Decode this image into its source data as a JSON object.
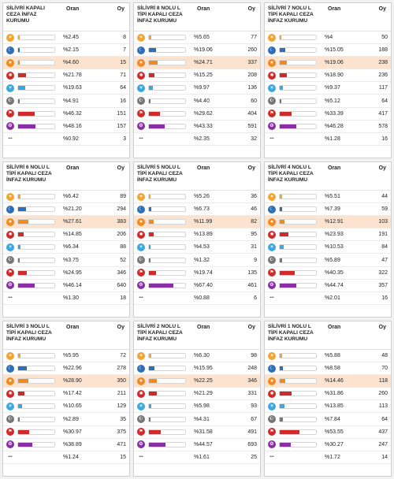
{
  "header": {
    "oran_label": "Oran",
    "oy_label": "Oy"
  },
  "parties": [
    {
      "icon": "bulb-icon",
      "color": "#f3a533"
    },
    {
      "icon": "crescent-stars-icon",
      "color": "#2c6fb8"
    },
    {
      "icon": "star-badge-icon",
      "color": "#f28a1f"
    },
    {
      "icon": "six-arrows-icon",
      "color": "#cf2a2a"
    },
    {
      "icon": "sun-icon",
      "color": "#39a8e0"
    },
    {
      "icon": "crescent-star-icon",
      "color": "#777777"
    },
    {
      "icon": "flag-icon",
      "color": "#d02a2a"
    },
    {
      "icon": "emblem-icon",
      "color": "#8a2ea6"
    },
    {
      "icon": "dots-icon",
      "color": "#444444"
    }
  ],
  "chart_data": [
    {
      "type": "table",
      "title": "SİLİVRİ KAPALI CEZA İNFAZ KURUMU",
      "highlight_row": 2,
      "rows": [
        {
          "pct": "%2.45",
          "votes": "8",
          "value": 2.45
        },
        {
          "pct": "%2.15",
          "votes": "7",
          "value": 2.15
        },
        {
          "pct": "%4.60",
          "votes": "15",
          "value": 4.6
        },
        {
          "pct": "%21.78",
          "votes": "71",
          "value": 21.78
        },
        {
          "pct": "%19.63",
          "votes": "64",
          "value": 19.63
        },
        {
          "pct": "%4.91",
          "votes": "16",
          "value": 4.91
        },
        {
          "pct": "%46.32",
          "votes": "151",
          "value": 46.32
        },
        {
          "pct": "%48.16",
          "votes": "157",
          "value": 48.16
        },
        {
          "pct": "%0.92",
          "votes": "3",
          "value": 0.92
        }
      ]
    },
    {
      "type": "table",
      "title": "SİLİVRİ 8 NOLU L TİPİ KAPALI CEZA İNFAZ KURUMU",
      "highlight_row": 2,
      "rows": [
        {
          "pct": "%5.65",
          "votes": "77",
          "value": 5.65
        },
        {
          "pct": "%19.06",
          "votes": "260",
          "value": 19.06
        },
        {
          "pct": "%24.71",
          "votes": "337",
          "value": 24.71
        },
        {
          "pct": "%15.25",
          "votes": "208",
          "value": 15.25
        },
        {
          "pct": "%9.97",
          "votes": "136",
          "value": 9.97
        },
        {
          "pct": "%4.40",
          "votes": "60",
          "value": 4.4
        },
        {
          "pct": "%29.62",
          "votes": "404",
          "value": 29.62
        },
        {
          "pct": "%43.33",
          "votes": "591",
          "value": 43.33
        },
        {
          "pct": "%2.35",
          "votes": "32",
          "value": 2.35
        }
      ]
    },
    {
      "type": "table",
      "title": "SİLİVRİ 7 NOLU L TİPİ KAPALI CEZA İNFAZ KURUMU",
      "highlight_row": 2,
      "rows": [
        {
          "pct": "%4",
          "votes": "50",
          "value": 4
        },
        {
          "pct": "%15.05",
          "votes": "188",
          "value": 15.05
        },
        {
          "pct": "%19.06",
          "votes": "238",
          "value": 19.06
        },
        {
          "pct": "%18.90",
          "votes": "236",
          "value": 18.9
        },
        {
          "pct": "%9.37",
          "votes": "117",
          "value": 9.37
        },
        {
          "pct": "%5.12",
          "votes": "64",
          "value": 5.12
        },
        {
          "pct": "%33.39",
          "votes": "417",
          "value": 33.39
        },
        {
          "pct": "%46.28",
          "votes": "578",
          "value": 46.28
        },
        {
          "pct": "%1.28",
          "votes": "16",
          "value": 1.28
        }
      ]
    },
    {
      "type": "table",
      "title": "SİLİVRİ 6 NOLU L TİPİ KAPALI CEZA İNFAZ KURUMU",
      "highlight_row": 2,
      "rows": [
        {
          "pct": "%6.42",
          "votes": "89",
          "value": 6.42
        },
        {
          "pct": "%21.20",
          "votes": "294",
          "value": 21.2
        },
        {
          "pct": "%27.61",
          "votes": "383",
          "value": 27.61
        },
        {
          "pct": "%14.85",
          "votes": "206",
          "value": 14.85
        },
        {
          "pct": "%6.34",
          "votes": "88",
          "value": 6.34
        },
        {
          "pct": "%3.75",
          "votes": "52",
          "value": 3.75
        },
        {
          "pct": "%24.95",
          "votes": "346",
          "value": 24.95
        },
        {
          "pct": "%46.14",
          "votes": "640",
          "value": 46.14
        },
        {
          "pct": "%1.30",
          "votes": "18",
          "value": 1.3
        }
      ]
    },
    {
      "type": "table",
      "title": "SİLİVRİ 5 NOLU L TİPİ KAPALI CEZA İNFAZ KURUMU",
      "highlight_row": 2,
      "rows": [
        {
          "pct": "%5.26",
          "votes": "36",
          "value": 5.26
        },
        {
          "pct": "%6.73",
          "votes": "46",
          "value": 6.73
        },
        {
          "pct": "%11.99",
          "votes": "82",
          "value": 11.99
        },
        {
          "pct": "%13.89",
          "votes": "95",
          "value": 13.89
        },
        {
          "pct": "%4.53",
          "votes": "31",
          "value": 4.53
        },
        {
          "pct": "%1.32",
          "votes": "9",
          "value": 1.32
        },
        {
          "pct": "%19.74",
          "votes": "135",
          "value": 19.74
        },
        {
          "pct": "%67.40",
          "votes": "461",
          "value": 67.4
        },
        {
          "pct": "%0.88",
          "votes": "6",
          "value": 0.88
        }
      ]
    },
    {
      "type": "table",
      "title": "SİLİVRİ 4 NOLU L TİPİ KAPALI CEZA İNFAZ KURUMU",
      "highlight_row": 2,
      "rows": [
        {
          "pct": "%5.51",
          "votes": "44",
          "value": 5.51
        },
        {
          "pct": "%7.39",
          "votes": "59",
          "value": 7.39
        },
        {
          "pct": "%12.91",
          "votes": "103",
          "value": 12.91
        },
        {
          "pct": "%23.93",
          "votes": "191",
          "value": 23.93
        },
        {
          "pct": "%10.53",
          "votes": "84",
          "value": 10.53
        },
        {
          "pct": "%5.89",
          "votes": "47",
          "value": 5.89
        },
        {
          "pct": "%40.35",
          "votes": "322",
          "value": 40.35
        },
        {
          "pct": "%44.74",
          "votes": "357",
          "value": 44.74
        },
        {
          "pct": "%2.01",
          "votes": "16",
          "value": 2.01
        }
      ]
    },
    {
      "type": "table",
      "title": "SİLİVRİ 3 NOLU L TİPİ KAPALI CEZA İNFAZ KURUMU",
      "highlight_row": 2,
      "rows": [
        {
          "pct": "%5.95",
          "votes": "72",
          "value": 5.95
        },
        {
          "pct": "%22.96",
          "votes": "278",
          "value": 22.96
        },
        {
          "pct": "%28.90",
          "votes": "350",
          "value": 28.9
        },
        {
          "pct": "%17.42",
          "votes": "211",
          "value": 17.42
        },
        {
          "pct": "%10.65",
          "votes": "129",
          "value": 10.65
        },
        {
          "pct": "%2.89",
          "votes": "35",
          "value": 2.89
        },
        {
          "pct": "%30.97",
          "votes": "375",
          "value": 30.97
        },
        {
          "pct": "%38.89",
          "votes": "471",
          "value": 38.89
        },
        {
          "pct": "%1.24",
          "votes": "15",
          "value": 1.24
        }
      ]
    },
    {
      "type": "table",
      "title": "SİLİVRİ 2 NOLU L TİPİ KAPALI CEZA İNFAZ KURUMU",
      "highlight_row": 2,
      "rows": [
        {
          "pct": "%6.30",
          "votes": "98",
          "value": 6.3
        },
        {
          "pct": "%15.95",
          "votes": "248",
          "value": 15.95
        },
        {
          "pct": "%22.25",
          "votes": "346",
          "value": 22.25
        },
        {
          "pct": "%21.29",
          "votes": "331",
          "value": 21.29
        },
        {
          "pct": "%5.98",
          "votes": "93",
          "value": 5.98
        },
        {
          "pct": "%4.31",
          "votes": "67",
          "value": 4.31
        },
        {
          "pct": "%31.58",
          "votes": "491",
          "value": 31.58
        },
        {
          "pct": "%44.57",
          "votes": "693",
          "value": 44.57
        },
        {
          "pct": "%1.61",
          "votes": "25",
          "value": 1.61
        }
      ]
    },
    {
      "type": "table",
      "title": "SİLİVRİ 1 NOLU L TİPİ KAPALI CEZA İNFAZ KURUMU",
      "highlight_row": 2,
      "rows": [
        {
          "pct": "%5.88",
          "votes": "48",
          "value": 5.88
        },
        {
          "pct": "%8.58",
          "votes": "70",
          "value": 8.58
        },
        {
          "pct": "%14.46",
          "votes": "118",
          "value": 14.46
        },
        {
          "pct": "%31.86",
          "votes": "260",
          "value": 31.86
        },
        {
          "pct": "%13.85",
          "votes": "113",
          "value": 13.85
        },
        {
          "pct": "%7.84",
          "votes": "64",
          "value": 7.84
        },
        {
          "pct": "%53.55",
          "votes": "437",
          "value": 53.55
        },
        {
          "pct": "%30.27",
          "votes": "247",
          "value": 30.27
        },
        {
          "pct": "%1.72",
          "votes": "14",
          "value": 1.72
        }
      ]
    }
  ]
}
